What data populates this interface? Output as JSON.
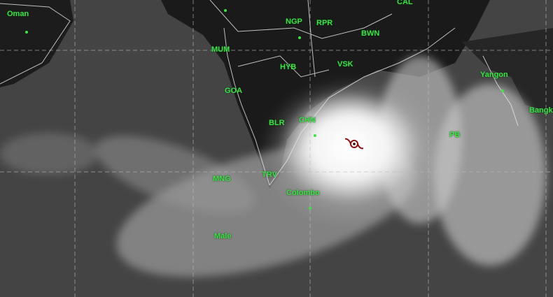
{
  "labels": {
    "oman": "Oman",
    "ngp": "NGP",
    "rpr": "RPR",
    "cal": "CAL",
    "bwn": "BWN",
    "mum": "MUM",
    "hyb": "HYB",
    "vsk": "VSK",
    "goa": "GOA",
    "blr": "BLR",
    "chn": "CHN",
    "mng": "MNG",
    "trv": "TRV",
    "colombo": "Colombo",
    "male": "Male",
    "yangon": "Yangon",
    "bangkok": "Bangk",
    "pbl": "PB"
  },
  "colors": {
    "label": "#3fe04a",
    "cyclone_symbol": "#8b1010"
  },
  "icons": {
    "cyclone": "cyclone-symbol-icon"
  }
}
